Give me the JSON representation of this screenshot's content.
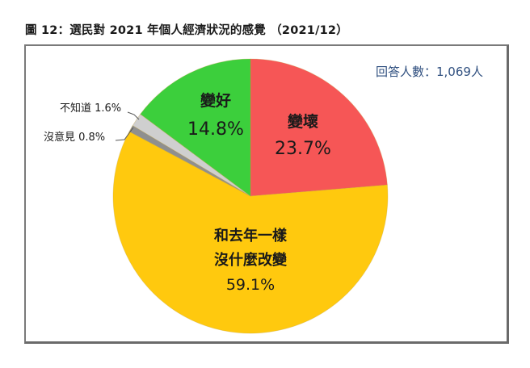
{
  "title": "圖 12：選民對 2021 年個人經濟狀況的感覺 （2021/12）",
  "respondents": "回答人數：1,069人",
  "colors": {
    "worse": "#f65656",
    "better": "#3ccf3c",
    "same": "#ffc90e",
    "no_opinion": "#8f8f8f",
    "dont_know": "#cfcfcf",
    "frame": "#7a7a7a",
    "respondents_text": "#2f4f7f"
  },
  "labels": {
    "worse_name": "變壞",
    "worse_pct": "23.7%",
    "better_name": "變好",
    "better_pct": "14.8%",
    "same_name_1": "和去年一樣",
    "same_name_2": "沒什麼改變",
    "same_pct": "59.1%",
    "dont_know": "不知道 1.6%",
    "no_opinion": "沒意見 0.8%"
  },
  "chart_data": {
    "type": "pie",
    "title": "圖 12：選民對 2021 年個人經濟狀況的感覺 （2021/12）",
    "annotation": "回答人數：1,069人",
    "start_angle_deg": 0,
    "direction": "clockwise",
    "slices": [
      {
        "label": "變壞",
        "value": 23.7,
        "color": "#f65656"
      },
      {
        "label": "和去年一樣 沒什麼改變",
        "value": 59.1,
        "color": "#ffc90e"
      },
      {
        "label": "沒意見",
        "value": 0.8,
        "color": "#8f8f8f"
      },
      {
        "label": "不知道",
        "value": 1.6,
        "color": "#cfcfcf"
      },
      {
        "label": "變好",
        "value": 14.8,
        "color": "#3ccf3c"
      }
    ],
    "legend": "none (labels on/near slices)"
  }
}
